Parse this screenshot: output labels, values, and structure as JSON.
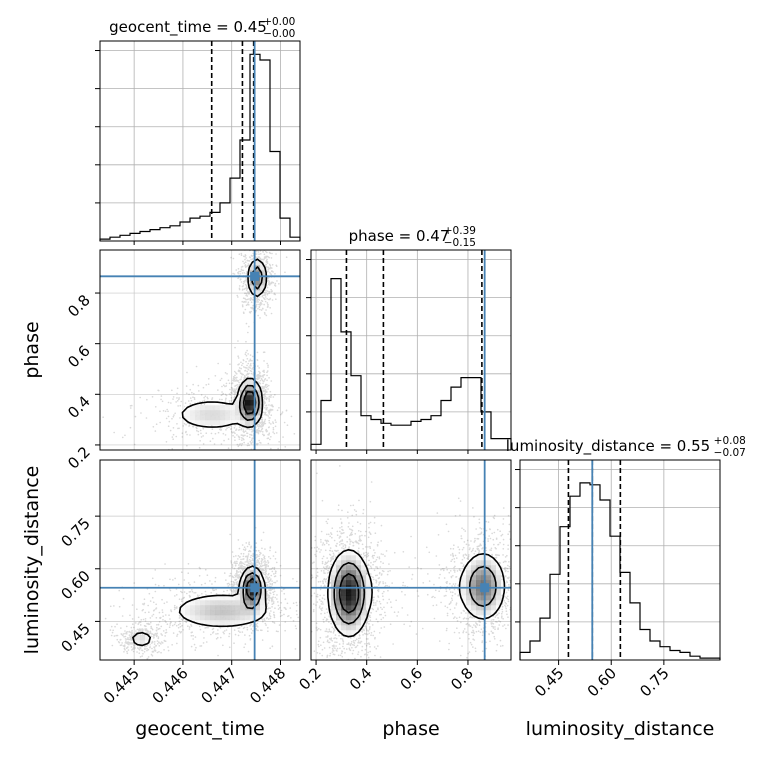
{
  "chart_data": {
    "type": "corner",
    "parameters": [
      "geocent_time",
      "phase",
      "luminosity_distance"
    ],
    "truths": [
      0.44747,
      0.866,
      0.546
    ],
    "truth_color": "#4682b4",
    "titles": [
      {
        "name": "geocent_time",
        "median": "0.45",
        "plus": "+0.00",
        "minus": "−0.00"
      },
      {
        "name": "phase",
        "median": "0.47",
        "plus": "+0.39",
        "minus": "−0.15"
      },
      {
        "name": "luminosity_distance",
        "median": "0.55",
        "plus": "+0.08",
        "minus": "−0.07"
      }
    ],
    "quantiles": [
      [
        0.44659,
        0.44722,
        0.44745
      ],
      [
        0.32,
        0.466,
        0.855
      ],
      [
        0.478,
        0.546,
        0.626
      ]
    ],
    "ranges": [
      [
        0.4443,
        0.4484
      ],
      [
        0.18,
        0.97
      ],
      [
        0.34,
        0.91
      ]
    ],
    "ticks": [
      [
        "0.445",
        "0.446",
        "0.447",
        "0.448"
      ],
      [
        "0.2",
        "0.4",
        "0.6",
        "0.8"
      ],
      [
        "0.45",
        "0.60",
        "0.75"
      ]
    ],
    "tick_values": [
      [
        0.445,
        0.446,
        0.447,
        0.448
      ],
      [
        0.2,
        0.4,
        0.6,
        0.8
      ],
      [
        0.45,
        0.6,
        0.75
      ]
    ],
    "histograms": [
      {
        "edges_start": 0.4443,
        "bin_width": 0.000205,
        "counts": [
          0.01,
          0.02,
          0.03,
          0.04,
          0.05,
          0.06,
          0.07,
          0.08,
          0.1,
          0.12,
          0.13,
          0.15,
          0.2,
          0.33,
          0.53,
          0.98,
          0.95,
          0.47,
          0.12,
          0.02
        ]
      },
      {
        "edges_start": 0.18,
        "bin_width": 0.0395,
        "counts": [
          0.03,
          0.26,
          0.9,
          0.62,
          0.39,
          0.18,
          0.16,
          0.14,
          0.13,
          0.13,
          0.15,
          0.16,
          0.18,
          0.26,
          0.33,
          0.38,
          0.38,
          0.2,
          0.06,
          0.06
        ]
      },
      {
        "edges_start": 0.34,
        "bin_width": 0.0285,
        "counts": [
          0.04,
          0.1,
          0.22,
          0.45,
          0.7,
          0.86,
          0.93,
          0.92,
          0.84,
          0.65,
          0.46,
          0.3,
          0.16,
          0.1,
          0.07,
          0.05,
          0.04,
          0.02,
          0.01,
          0.01
        ]
      }
    ],
    "pairs": [
      {
        "x": "geocent_time",
        "y": "phase",
        "modes": [
          {
            "x": 0.44737,
            "y": 0.37,
            "sx": 0.00012,
            "sy": 0.045,
            "w": 1.0
          },
          {
            "x": 0.44752,
            "y": 0.86,
            "sx": 0.0001,
            "sy": 0.04,
            "w": 0.6
          },
          {
            "x": 0.4466,
            "y": 0.32,
            "sx": 0.0005,
            "sy": 0.04,
            "w": 0.25
          }
        ]
      },
      {
        "x": "geocent_time",
        "y": "luminosity_distance",
        "modes": [
          {
            "x": 0.44742,
            "y": 0.545,
            "sx": 0.00012,
            "sy": 0.03,
            "w": 1.0
          },
          {
            "x": 0.4468,
            "y": 0.48,
            "sx": 0.0006,
            "sy": 0.03,
            "w": 0.35
          },
          {
            "x": 0.44515,
            "y": 0.4,
            "sx": 0.00015,
            "sy": 0.015,
            "w": 0.25
          }
        ]
      },
      {
        "x": "phase",
        "y": "luminosity_distance",
        "modes": [
          {
            "x": 0.33,
            "y": 0.53,
            "sx": 0.04,
            "sy": 0.06,
            "w": 1.0
          },
          {
            "x": 0.86,
            "y": 0.55,
            "sx": 0.045,
            "sy": 0.05,
            "w": 0.65
          },
          {
            "x": 0.6,
            "y": 0.54,
            "sx": 0.15,
            "sy": 0.05,
            "w": 0.08
          }
        ]
      }
    ],
    "grid": true
  }
}
